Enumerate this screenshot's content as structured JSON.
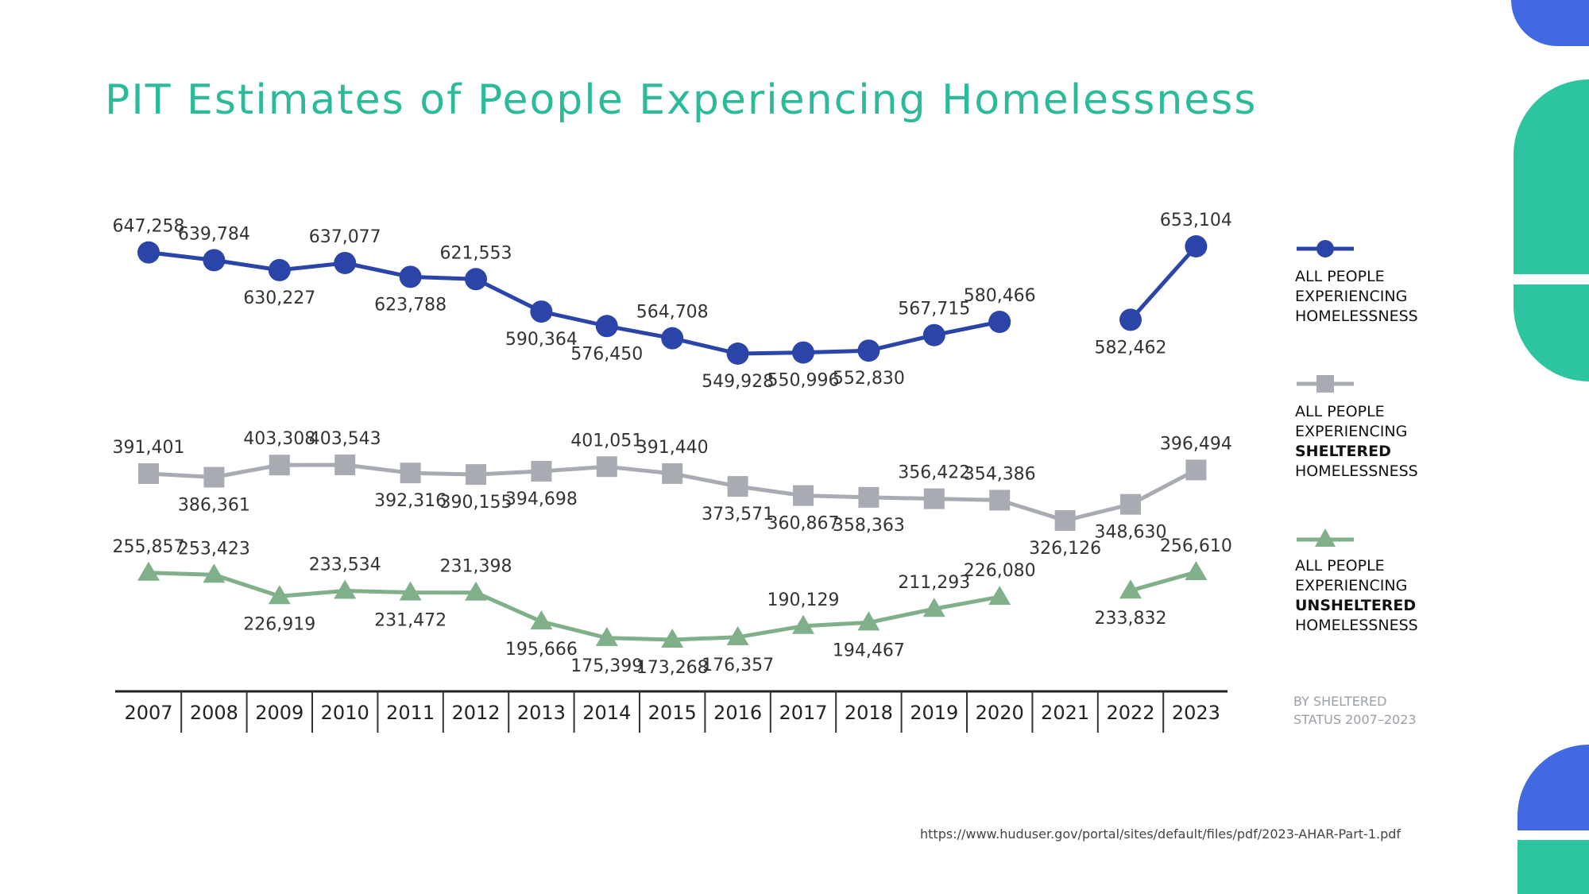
{
  "title": "PIT Estimates of People Experiencing Homelessness",
  "chart_data": {
    "type": "line",
    "x": [
      "2007",
      "2008",
      "2009",
      "2010",
      "2011",
      "2012",
      "2013",
      "2014",
      "2015",
      "2016",
      "2017",
      "2018",
      "2019",
      "2020",
      "2021",
      "2022",
      "2023"
    ],
    "series": [
      {
        "name_parts": [
          "ALL PEOPLE",
          "EXPERIENCING",
          "HOMELESSNESS"
        ],
        "marker": "circle",
        "color": "#2b44a8",
        "values": [
          647258,
          639784,
          630227,
          637077,
          623788,
          621553,
          590364,
          576450,
          564708,
          549928,
          550996,
          552830,
          567715,
          580466,
          null,
          582462,
          653104
        ],
        "labels": [
          "647,258",
          "639,784",
          "630,227",
          "637,077",
          "623,788",
          "621,553",
          "590,364",
          "576,450",
          "564,708",
          "549,928",
          "550,996",
          "552,830",
          "567,715",
          "580,466",
          null,
          "582,462",
          "653,104"
        ]
      },
      {
        "name_parts": [
          "ALL PEOPLE",
          "EXPERIENCING",
          "SHELTERED",
          "HOMELESSNESS"
        ],
        "marker": "square",
        "color": "#a9abb3",
        "values": [
          391401,
          386361,
          403308,
          403543,
          392316,
          390155,
          394698,
          401051,
          391440,
          373571,
          360867,
          358363,
          356422,
          354386,
          326126,
          348630,
          396494
        ],
        "labels": [
          "391,401",
          "386,361",
          "403,308",
          "403,543",
          "392,316",
          "390,155",
          "394,698",
          "401,051",
          "391,440",
          "373,571",
          "360,867",
          "358,363",
          "356,422",
          "354,386",
          "326,126",
          "348,630",
          "396,494"
        ]
      },
      {
        "name_parts": [
          "ALL PEOPLE",
          "EXPERIENCING",
          "UNSHELTERED",
          "HOMELESSNESS"
        ],
        "marker": "triangle",
        "color": "#7fb08a",
        "values": [
          255857,
          253423,
          226919,
          233534,
          231472,
          231398,
          195666,
          175399,
          173268,
          176357,
          190129,
          194467,
          211293,
          226080,
          null,
          233832,
          256610
        ],
        "labels": [
          "255,857",
          "253,423",
          "226,919",
          "233,534",
          "231,472",
          "231,398",
          "195,666",
          "175,399",
          "173,268",
          "176,357",
          "190,129",
          "194,467",
          "211,293",
          "226,080",
          null,
          "233,832",
          "256,610"
        ]
      }
    ],
    "note_lines": [
      "BY SHELTERED",
      "STATUS  2007–2023"
    ]
  },
  "source_url": "https://www.huduser.gov/portal/sites/default/files/pdf/2023-AHAR-Part-1.pdf",
  "colors": {
    "title": "#2cbb9a",
    "deco_blue": "#4169e1",
    "deco_green": "#2cc5a0"
  }
}
